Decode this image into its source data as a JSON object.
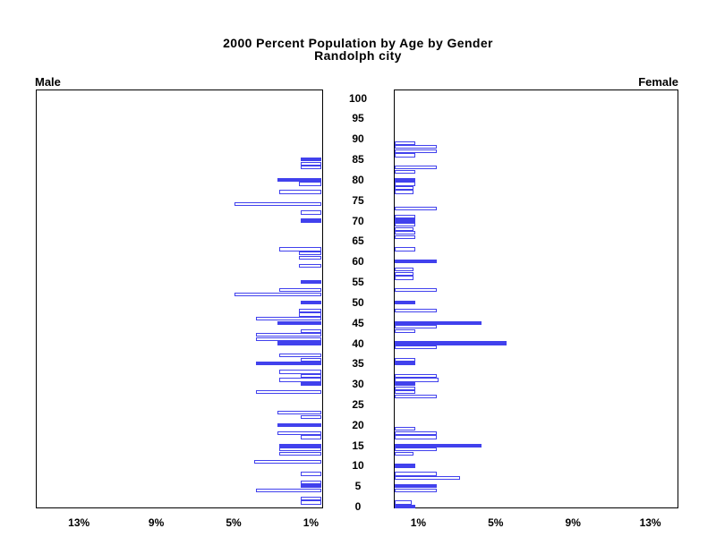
{
  "title": {
    "line1": "2000 Percent Population by Age by Gender",
    "line2": "Randolph city"
  },
  "panel_labels": {
    "male": "Male",
    "female": "Female"
  },
  "axis": {
    "age_ticks": [
      0,
      5,
      10,
      15,
      20,
      25,
      30,
      35,
      40,
      45,
      50,
      55,
      60,
      65,
      70,
      75,
      80,
      85,
      90,
      95,
      100
    ],
    "male_pct_ticks": [
      {
        "value": 13,
        "label": "13%"
      },
      {
        "value": 9,
        "label": "9%"
      },
      {
        "value": 5,
        "label": "5%"
      },
      {
        "value": 1,
        "label": "1%"
      }
    ],
    "female_pct_ticks": [
      {
        "value": 1,
        "label": "1%"
      },
      {
        "value": 5,
        "label": "5%"
      },
      {
        "value": 9,
        "label": "9%"
      },
      {
        "value": 13,
        "label": "13%"
      }
    ]
  },
  "colors": {
    "bar_blue": "#4141ed",
    "axis_black": "#000000",
    "background": "#ffffff"
  },
  "chart_data": {
    "type": "bar",
    "subtype": "population-pyramid",
    "title": "2000 Percent Population by Age by Gender",
    "subtitle": "Randolph city",
    "left_side_label": "Male",
    "right_side_label": "Female",
    "x_unit": "percent of population",
    "xlim_each_side": [
      0,
      14.8
    ],
    "x_ticks_pct": [
      1,
      5,
      9,
      13
    ],
    "age_axis": {
      "min": 0,
      "max": 100,
      "tick_step": 5
    },
    "bar_encoding": "one bar per single year of age; ages at multiples of 5 are solid blue, other ages are white with blue outline; years with no bar have zero/no population",
    "series": [
      {
        "name": "Male",
        "side": "left",
        "points": [
          {
            "age": 85,
            "pct": 1.1,
            "filled": true
          },
          {
            "age": 84,
            "pct": 1.1,
            "filled": false
          },
          {
            "age": 83,
            "pct": 1.1,
            "filled": false
          },
          {
            "age": 80,
            "pct": 2.3,
            "filled": true
          },
          {
            "age": 79,
            "pct": 1.2,
            "filled": false
          },
          {
            "age": 77,
            "pct": 2.2,
            "filled": false
          },
          {
            "age": 74,
            "pct": 4.5,
            "filled": false
          },
          {
            "age": 72,
            "pct": 1.1,
            "filled": false
          },
          {
            "age": 70,
            "pct": 1.1,
            "filled": true
          },
          {
            "age": 63,
            "pct": 2.2,
            "filled": false
          },
          {
            "age": 62,
            "pct": 1.2,
            "filled": false
          },
          {
            "age": 61,
            "pct": 1.2,
            "filled": false
          },
          {
            "age": 59,
            "pct": 1.2,
            "filled": false
          },
          {
            "age": 55,
            "pct": 1.1,
            "filled": true
          },
          {
            "age": 53,
            "pct": 2.2,
            "filled": false
          },
          {
            "age": 52,
            "pct": 4.5,
            "filled": false
          },
          {
            "age": 50,
            "pct": 1.1,
            "filled": true
          },
          {
            "age": 48,
            "pct": 1.2,
            "filled": false
          },
          {
            "age": 47,
            "pct": 1.2,
            "filled": false
          },
          {
            "age": 46,
            "pct": 3.4,
            "filled": false
          },
          {
            "age": 45,
            "pct": 2.3,
            "filled": true
          },
          {
            "age": 43,
            "pct": 1.1,
            "filled": false
          },
          {
            "age": 42,
            "pct": 3.4,
            "filled": false
          },
          {
            "age": 41,
            "pct": 3.4,
            "filled": false
          },
          {
            "age": 40,
            "pct": 2.3,
            "filled": true
          },
          {
            "age": 37,
            "pct": 2.2,
            "filled": false
          },
          {
            "age": 36,
            "pct": 1.1,
            "filled": false
          },
          {
            "age": 35,
            "pct": 3.4,
            "filled": true
          },
          {
            "age": 33,
            "pct": 2.2,
            "filled": false
          },
          {
            "age": 32,
            "pct": 1.1,
            "filled": false
          },
          {
            "age": 31,
            "pct": 2.2,
            "filled": false
          },
          {
            "age": 30,
            "pct": 1.1,
            "filled": true
          },
          {
            "age": 28,
            "pct": 3.4,
            "filled": false
          },
          {
            "age": 23,
            "pct": 2.3,
            "filled": false
          },
          {
            "age": 22,
            "pct": 1.1,
            "filled": false
          },
          {
            "age": 20,
            "pct": 2.3,
            "filled": true
          },
          {
            "age": 18,
            "pct": 2.3,
            "filled": false
          },
          {
            "age": 17,
            "pct": 1.1,
            "filled": false
          },
          {
            "age": 15,
            "pct": 2.2,
            "filled": true
          },
          {
            "age": 14,
            "pct": 2.2,
            "filled": false
          },
          {
            "age": 13,
            "pct": 2.2,
            "filled": false
          },
          {
            "age": 11,
            "pct": 3.5,
            "filled": false
          },
          {
            "age": 8,
            "pct": 1.1,
            "filled": false
          },
          {
            "age": 6,
            "pct": 1.1,
            "filled": false
          },
          {
            "age": 5,
            "pct": 1.1,
            "filled": true
          },
          {
            "age": 4,
            "pct": 3.4,
            "filled": false
          },
          {
            "age": 2,
            "pct": 1.1,
            "filled": false
          },
          {
            "age": 1,
            "pct": 1.1,
            "filled": false
          }
        ]
      },
      {
        "name": "Female",
        "side": "right",
        "points": [
          {
            "age": 89,
            "pct": 1.1,
            "filled": false
          },
          {
            "age": 88,
            "pct": 2.2,
            "filled": false
          },
          {
            "age": 87,
            "pct": 2.2,
            "filled": false
          },
          {
            "age": 86,
            "pct": 1.1,
            "filled": false
          },
          {
            "age": 83,
            "pct": 2.2,
            "filled": false
          },
          {
            "age": 82,
            "pct": 1.1,
            "filled": false
          },
          {
            "age": 80,
            "pct": 1.1,
            "filled": true
          },
          {
            "age": 79,
            "pct": 1.1,
            "filled": false
          },
          {
            "age": 78,
            "pct": 1.0,
            "filled": false
          },
          {
            "age": 77,
            "pct": 1.0,
            "filled": false
          },
          {
            "age": 73,
            "pct": 2.2,
            "filled": false
          },
          {
            "age": 71,
            "pct": 1.1,
            "filled": false
          },
          {
            "age": 70,
            "pct": 1.1,
            "filled": true
          },
          {
            "age": 69,
            "pct": 1.1,
            "filled": false
          },
          {
            "age": 68,
            "pct": 1.0,
            "filled": false
          },
          {
            "age": 67,
            "pct": 1.1,
            "filled": false
          },
          {
            "age": 66,
            "pct": 1.1,
            "filled": false
          },
          {
            "age": 63,
            "pct": 1.1,
            "filled": false
          },
          {
            "age": 60,
            "pct": 2.2,
            "filled": true
          },
          {
            "age": 58,
            "pct": 1.0,
            "filled": false
          },
          {
            "age": 57,
            "pct": 1.0,
            "filled": false
          },
          {
            "age": 56,
            "pct": 1.0,
            "filled": false
          },
          {
            "age": 53,
            "pct": 2.2,
            "filled": false
          },
          {
            "age": 50,
            "pct": 1.1,
            "filled": true
          },
          {
            "age": 48,
            "pct": 2.2,
            "filled": false
          },
          {
            "age": 45,
            "pct": 4.5,
            "filled": true
          },
          {
            "age": 44,
            "pct": 2.2,
            "filled": false
          },
          {
            "age": 43,
            "pct": 1.1,
            "filled": false
          },
          {
            "age": 40,
            "pct": 5.8,
            "filled": true
          },
          {
            "age": 39,
            "pct": 2.2,
            "filled": false
          },
          {
            "age": 36,
            "pct": 1.1,
            "filled": false
          },
          {
            "age": 35,
            "pct": 1.1,
            "filled": true
          },
          {
            "age": 32,
            "pct": 2.2,
            "filled": false
          },
          {
            "age": 31,
            "pct": 2.3,
            "filled": false
          },
          {
            "age": 30,
            "pct": 1.1,
            "filled": true
          },
          {
            "age": 29,
            "pct": 1.1,
            "filled": false
          },
          {
            "age": 28,
            "pct": 1.1,
            "filled": false
          },
          {
            "age": 27,
            "pct": 2.2,
            "filled": false
          },
          {
            "age": 19,
            "pct": 1.1,
            "filled": false
          },
          {
            "age": 18,
            "pct": 2.2,
            "filled": false
          },
          {
            "age": 17,
            "pct": 2.2,
            "filled": false
          },
          {
            "age": 15,
            "pct": 4.5,
            "filled": true
          },
          {
            "age": 14,
            "pct": 2.2,
            "filled": false
          },
          {
            "age": 13,
            "pct": 1.0,
            "filled": false
          },
          {
            "age": 10,
            "pct": 1.1,
            "filled": true
          },
          {
            "age": 8,
            "pct": 2.2,
            "filled": false
          },
          {
            "age": 7,
            "pct": 3.4,
            "filled": false
          },
          {
            "age": 5,
            "pct": 2.2,
            "filled": true
          },
          {
            "age": 4,
            "pct": 2.2,
            "filled": false
          },
          {
            "age": 1,
            "pct": 0.9,
            "filled": false
          },
          {
            "age": 0,
            "pct": 1.1,
            "filled": true
          }
        ]
      }
    ]
  }
}
